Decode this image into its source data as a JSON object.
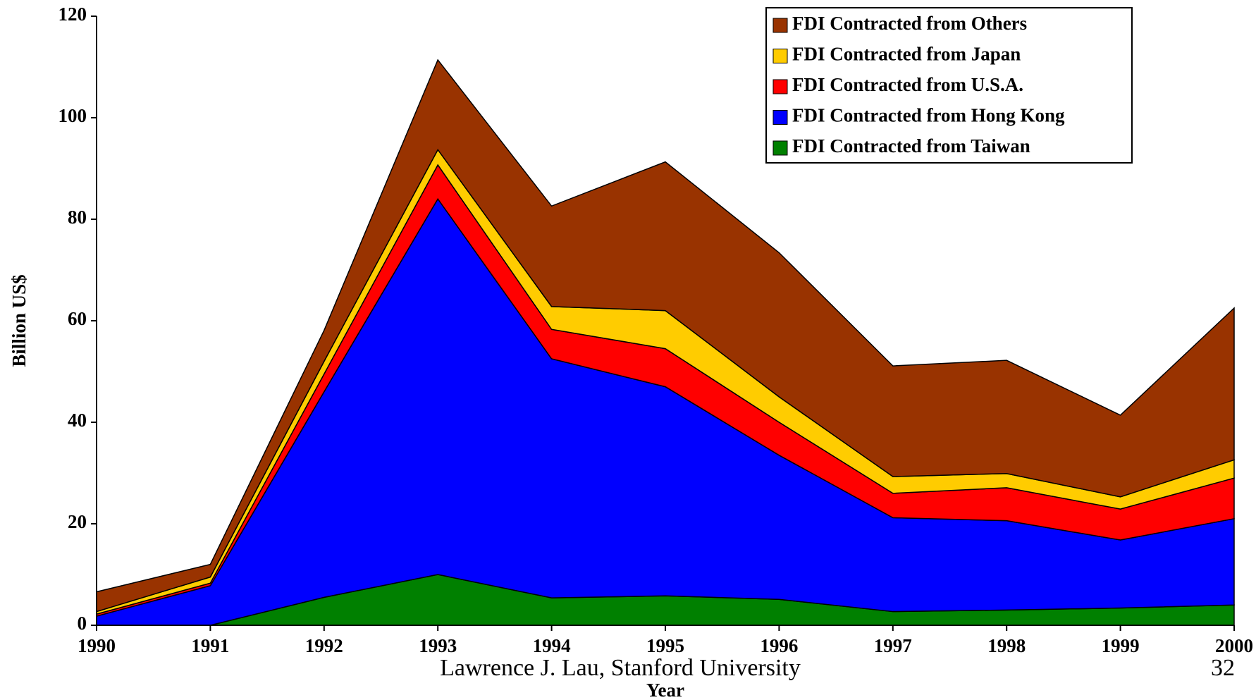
{
  "chart_data": {
    "type": "area",
    "stacked": true,
    "y_label": "Billion US$",
    "x_label": "Year",
    "x": [
      1990,
      1991,
      1992,
      1993,
      1994,
      1995,
      1996,
      1997,
      1998,
      1999,
      2000
    ],
    "xlim": [
      1990,
      2000
    ],
    "xticks": [
      1990,
      1991,
      1992,
      1993,
      1994,
      1995,
      1996,
      1997,
      1998,
      1999,
      2000
    ],
    "ylim": [
      0,
      120
    ],
    "yticks": [
      0,
      20,
      40,
      60,
      80,
      100,
      120
    ],
    "legend": "top-right",
    "series": [
      {
        "name": "FDI Contracted from Others",
        "color": "#993300",
        "values": [
          3.9,
          2.5,
          6.1,
          17.7,
          19.8,
          29.3,
          28.4,
          21.8,
          22.3,
          16.1,
          29.9
        ]
      },
      {
        "name": "FDI Contracted from Japan",
        "color": "#ffcc00",
        "values": [
          0.5,
          1.2,
          2.5,
          3.0,
          4.5,
          7.5,
          5.0,
          3.3,
          2.8,
          2.4,
          3.6
        ]
      },
      {
        "name": "FDI Contracted from U.S.A.",
        "color": "#ff0000",
        "values": [
          0.4,
          0.5,
          3.5,
          6.7,
          5.8,
          7.5,
          6.5,
          4.8,
          6.5,
          6.1,
          8.0
        ]
      },
      {
        "name": "FDI Contracted from Hong Kong",
        "color": "#0000ff",
        "values": [
          1.8,
          7.8,
          40.5,
          74.0,
          47.1,
          41.2,
          28.4,
          18.5,
          17.6,
          13.4,
          17.0
        ]
      },
      {
        "name": "FDI Contracted from Taiwan",
        "color": "#008000",
        "values": [
          0,
          0,
          5.5,
          10.0,
          5.4,
          5.8,
          5.1,
          2.7,
          3.0,
          3.4,
          4.0
        ]
      }
    ]
  },
  "footer": {
    "author": "Lawrence J. Lau, Stanford University",
    "page": "32"
  }
}
